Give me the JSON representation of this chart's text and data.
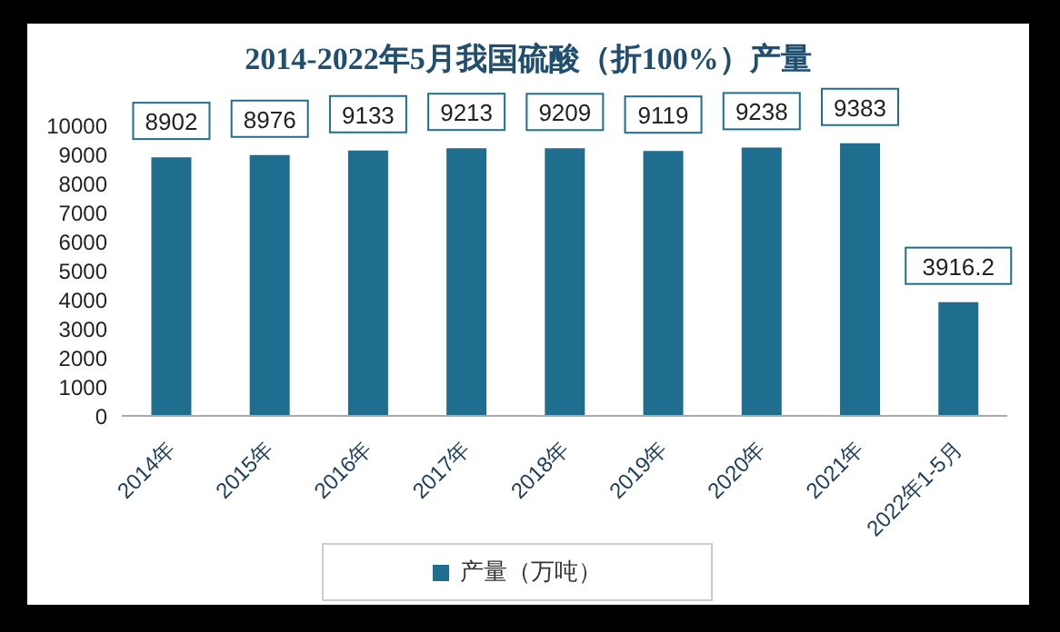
{
  "chart_data": {
    "type": "bar",
    "title": "2014-2022年5月我国硫酸（折100%）产量",
    "categories": [
      "2014年",
      "2015年",
      "2016年",
      "2017年",
      "2018年",
      "2019年",
      "2020年",
      "2021年",
      "2022年1-5月"
    ],
    "series": [
      {
        "name": "产量（万吨）",
        "color": "#1f6e8f",
        "values": [
          8902,
          8976,
          9133,
          9213,
          9209,
          9119,
          9238,
          9383,
          3916.2
        ]
      }
    ],
    "ylim": [
      0,
      10000
    ],
    "yticks": [
      0,
      1000,
      2000,
      3000,
      4000,
      5000,
      6000,
      7000,
      8000,
      9000,
      10000
    ],
    "grid": false,
    "legend": "bottom",
    "data_labels": true
  }
}
